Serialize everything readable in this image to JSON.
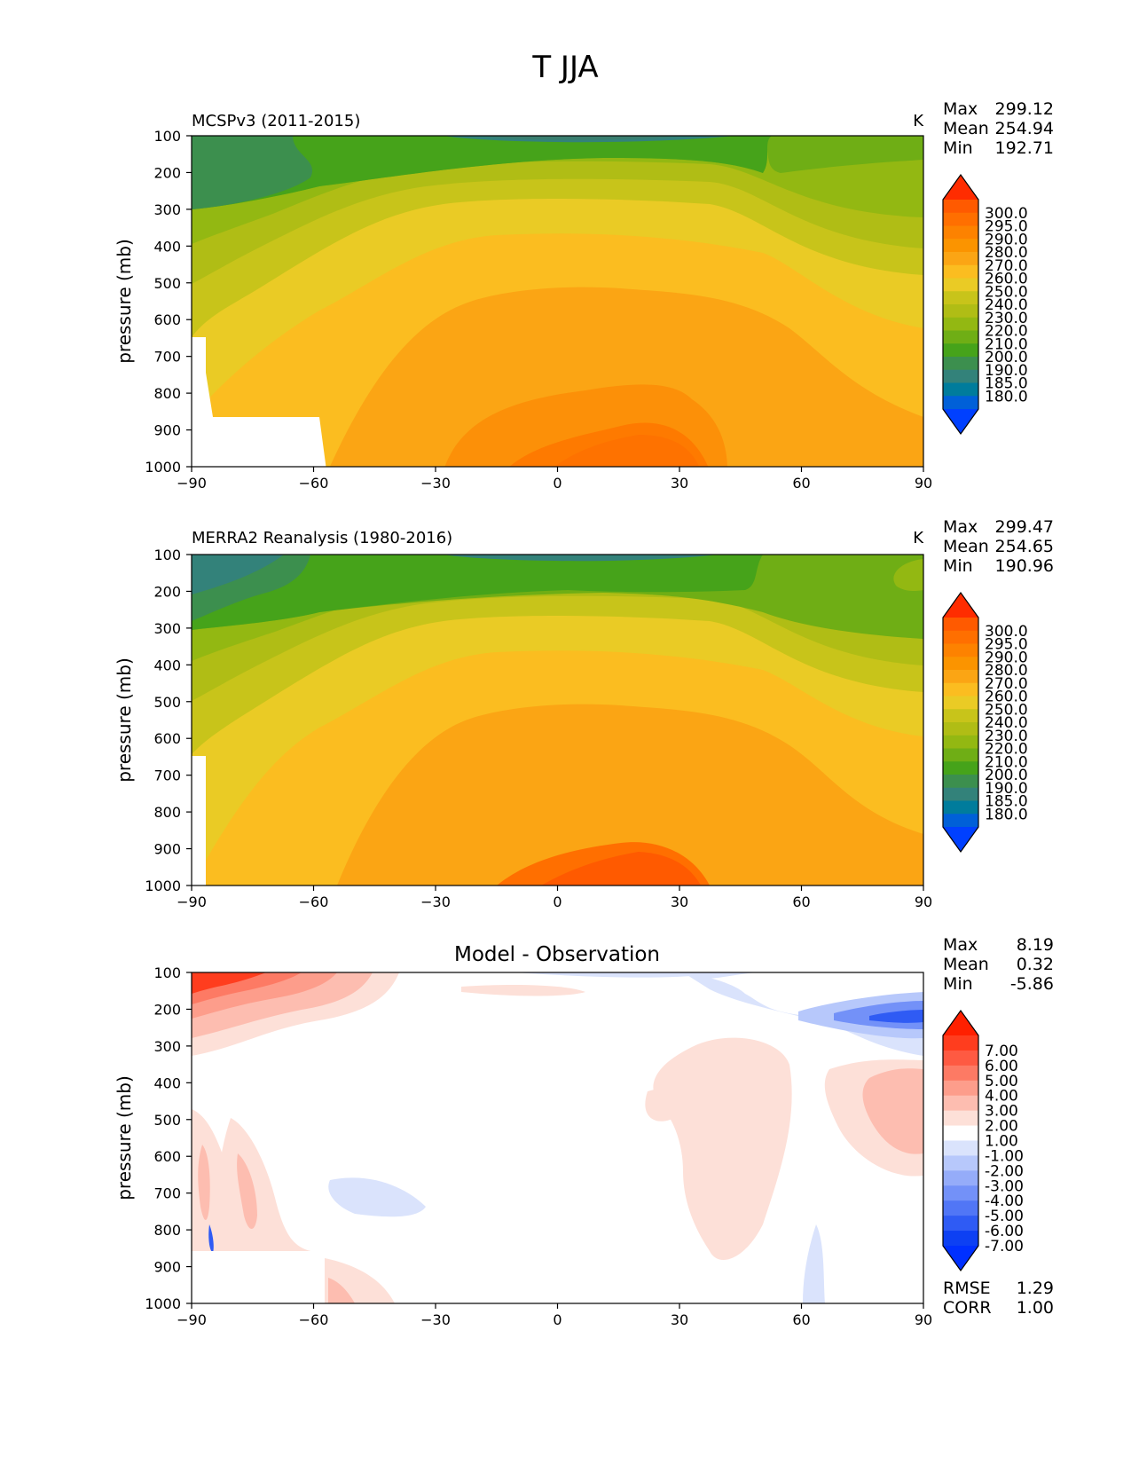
{
  "figure": {
    "title": "T JJA"
  },
  "chart_data": [
    {
      "type": "contour",
      "title": "MCSPv3 (2011-2015)",
      "units": "K",
      "xlabel": "",
      "ylabel": "pressure (mb)",
      "x_ticks": [
        "−90",
        "−60",
        "−30",
        "0",
        "30",
        "60",
        "90"
      ],
      "y_ticks": [
        "100",
        "200",
        "300",
        "400",
        "500",
        "600",
        "700",
        "800",
        "900",
        "1000"
      ],
      "xlim": [
        -90,
        90
      ],
      "ylim": [
        100,
        1000
      ],
      "y_inverted": true,
      "stats": [
        {
          "label": "Max",
          "value": "299.12"
        },
        {
          "label": "Mean",
          "value": "254.94"
        },
        {
          "label": "Min",
          "value": "192.71"
        }
      ],
      "colorbar": {
        "labels": [
          "300.0",
          "295.0",
          "290.0",
          "280.0",
          "270.0",
          "260.0",
          "250.0",
          "240.0",
          "230.0",
          "220.0",
          "210.0",
          "200.0",
          "190.0",
          "185.0",
          "180.0"
        ],
        "colors": [
          "#ff5a00",
          "#ff6f00",
          "#fd8200",
          "#fb9400",
          "#fba514",
          "#fbbd20",
          "#eacb25",
          "#c8c41a",
          "#b0bd15",
          "#93b812",
          "#6fae15",
          "#46a31a",
          "#3c8f4e",
          "#33827a",
          "#007c9c",
          "#0060d8"
        ],
        "top_extend_color": "#ff2c00",
        "bottom_extend_color": "#0040ff"
      }
    },
    {
      "type": "contour",
      "title": "MERRA2 Reanalysis (1980-2016)",
      "units": "K",
      "xlabel": "",
      "ylabel": "pressure (mb)",
      "x_ticks": [
        "−90",
        "−60",
        "−30",
        "0",
        "30",
        "60",
        "90"
      ],
      "y_ticks": [
        "100",
        "200",
        "300",
        "400",
        "500",
        "600",
        "700",
        "800",
        "900",
        "1000"
      ],
      "xlim": [
        -90,
        90
      ],
      "ylim": [
        100,
        1000
      ],
      "y_inverted": true,
      "stats": [
        {
          "label": "Max",
          "value": "299.47"
        },
        {
          "label": "Mean",
          "value": "254.65"
        },
        {
          "label": "Min",
          "value": "190.96"
        }
      ],
      "colorbar": {
        "labels": [
          "300.0",
          "295.0",
          "290.0",
          "280.0",
          "270.0",
          "260.0",
          "250.0",
          "240.0",
          "230.0",
          "220.0",
          "210.0",
          "200.0",
          "190.0",
          "185.0",
          "180.0"
        ],
        "colors": [
          "#ff5a00",
          "#ff6f00",
          "#fd8200",
          "#fb9400",
          "#fba514",
          "#fbbd20",
          "#eacb25",
          "#c8c41a",
          "#b0bd15",
          "#93b812",
          "#6fae15",
          "#46a31a",
          "#3c8f4e",
          "#33827a",
          "#007c9c",
          "#0060d8"
        ],
        "top_extend_color": "#ff2c00",
        "bottom_extend_color": "#0040ff"
      }
    },
    {
      "type": "contour",
      "title": "Model - Observation",
      "units": "",
      "xlabel": "",
      "ylabel": "pressure (mb)",
      "x_ticks": [
        "−90",
        "−60",
        "−30",
        "0",
        "30",
        "60",
        "90"
      ],
      "y_ticks": [
        "100",
        "200",
        "300",
        "400",
        "500",
        "600",
        "700",
        "800",
        "900",
        "1000"
      ],
      "xlim": [
        -90,
        90
      ],
      "ylim": [
        100,
        1000
      ],
      "y_inverted": true,
      "stats": [
        {
          "label": "Max",
          "value": "8.19"
        },
        {
          "label": "Mean",
          "value": "0.32"
        },
        {
          "label": "Min",
          "value": "-5.86"
        }
      ],
      "extra_stats": [
        {
          "label": "RMSE",
          "value": "1.29"
        },
        {
          "label": "CORR",
          "value": "1.00"
        }
      ],
      "colorbar": {
        "labels": [
          "7.00",
          "6.00",
          "5.00",
          "4.00",
          "3.00",
          "2.00",
          "1.00",
          "-1.00",
          "-2.00",
          "-3.00",
          "-4.00",
          "-5.00",
          "-6.00",
          "-7.00"
        ],
        "colors": [
          "#ff3d1e",
          "#fe5a42",
          "#fd7a64",
          "#fd9d8b",
          "#fdbdb0",
          "#fde0d8",
          "#ffffff",
          "#dae3fc",
          "#b7c8fb",
          "#95acf9",
          "#7391f8",
          "#5176f6",
          "#2f5bf4",
          "#0d40f3"
        ],
        "top_extend_color": "#ff2000",
        "bottom_extend_color": "#0030ff"
      }
    }
  ]
}
